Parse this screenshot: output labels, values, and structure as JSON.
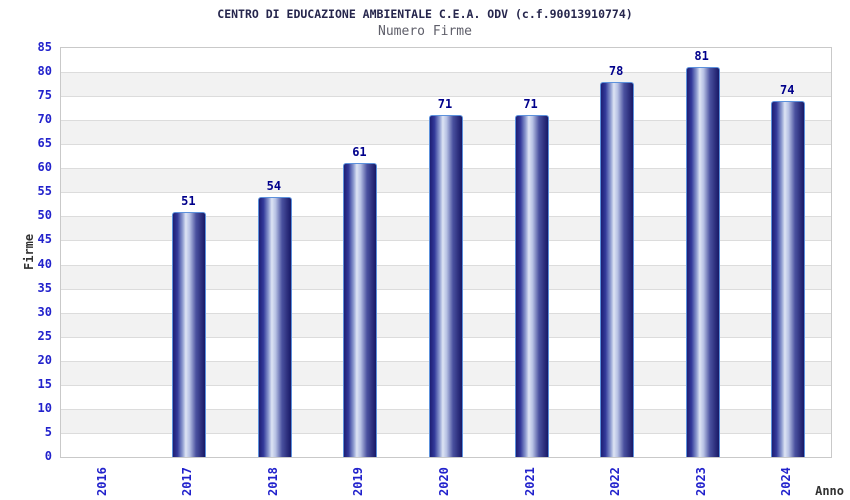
{
  "chart_data": {
    "type": "bar",
    "title": "CENTRO DI EDUCAZIONE AMBIENTALE C.E.A. ODV (c.f.90013910774)",
    "subtitle": "Numero Firme",
    "xlabel": "Anno",
    "ylabel": "Firme",
    "categories": [
      "2016",
      "2017",
      "2018",
      "2019",
      "2020",
      "2021",
      "2022",
      "2023",
      "2024"
    ],
    "values": [
      0,
      51,
      54,
      61,
      71,
      71,
      78,
      81,
      74
    ],
    "ylim": [
      0,
      85
    ],
    "ytick_step": 5,
    "grid": "horizontal gridlines with alternating shaded bands every 5 units",
    "legend": "none",
    "bar_value_labels_shown": true,
    "colors": {
      "title": "#26264d",
      "subtitle": "#5f5f6a",
      "tick_label": "#2222cc",
      "value_label": "#00008b",
      "axis_label": "#333333",
      "band": "#f2f2f2",
      "gridline": "#dcdcdc",
      "plot_border": "#c9c9c9",
      "bar_dark": "#1e1e74",
      "bar_light": "#dde4f4",
      "bar_border": "#5c91dc"
    }
  }
}
